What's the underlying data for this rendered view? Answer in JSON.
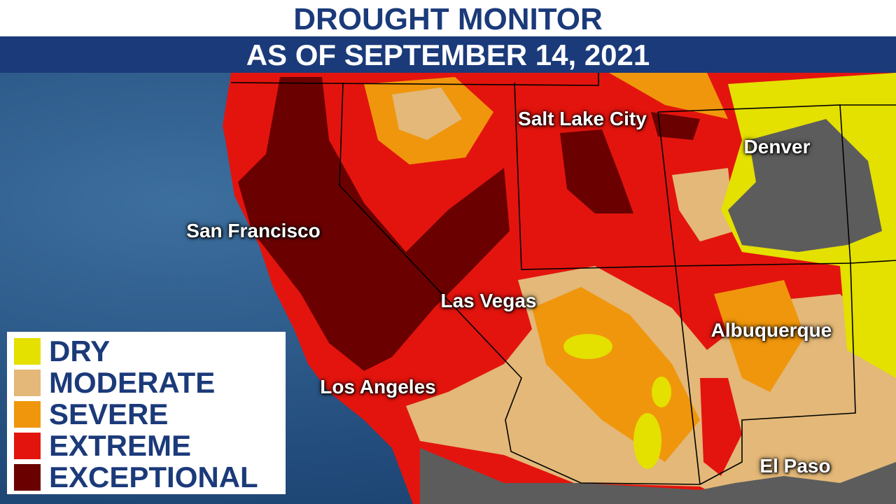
{
  "header": {
    "title": "DROUGHT MONITOR",
    "subtitle": "AS OF SEPTEMBER 14, 2021"
  },
  "cities": [
    {
      "label": "Salt Lake City"
    },
    {
      "label": "Denver"
    },
    {
      "label": "San Francisco"
    },
    {
      "label": "Las Vegas"
    },
    {
      "label": "Albuquerque"
    },
    {
      "label": "Los Angeles"
    },
    {
      "label": "El Paso"
    }
  ],
  "legend": [
    {
      "label": "DRY",
      "color": "#e4e000"
    },
    {
      "label": "MODERATE",
      "color": "#e3b878"
    },
    {
      "label": "SEVERE",
      "color": "#f0960c"
    },
    {
      "label": "EXTREME",
      "color": "#e3140e"
    },
    {
      "label": "EXCEPTIONAL",
      "color": "#6b0000"
    }
  ]
}
